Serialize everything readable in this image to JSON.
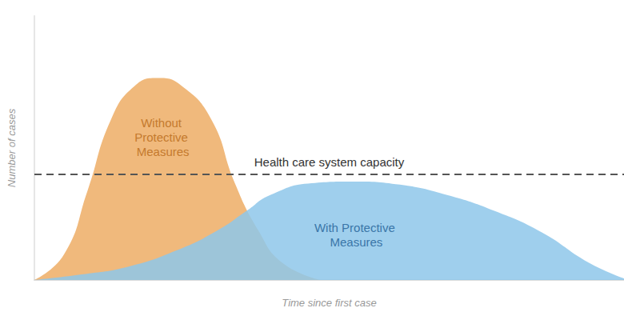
{
  "chart_data": {
    "type": "area",
    "x_label": "Time since first case",
    "y_label": "Number of cases",
    "xlim": [
      0,
      100
    ],
    "ylim": [
      0,
      100
    ],
    "tick_labels": false,
    "grid": false,
    "reference_line": {
      "value": 40,
      "label": "Health care system capacity",
      "line_style": "dashed"
    },
    "series": [
      {
        "name": "Without Protective Measures",
        "color": "#f0b97c",
        "x": [
          0,
          5,
          9,
          13,
          17,
          21,
          25,
          30,
          34,
          38,
          42,
          48.5
        ],
        "values": [
          0,
          9.6,
          33.7,
          60.8,
          73.5,
          76.5,
          73.5,
          60.8,
          36.7,
          18.7,
          6.6,
          0
        ]
      },
      {
        "name": "With Protective Measures",
        "color": "#8ec7ea",
        "x": [
          0,
          8,
          16,
          24,
          31,
          36,
          40,
          47,
          54,
          62,
          70,
          78,
          86,
          94,
          100
        ],
        "values": [
          0,
          2.1,
          5.1,
          11.1,
          18.7,
          26.2,
          32.2,
          36.7,
          37.3,
          36.1,
          32.2,
          26.2,
          18.1,
          6.6,
          0.6
        ]
      }
    ]
  }
}
